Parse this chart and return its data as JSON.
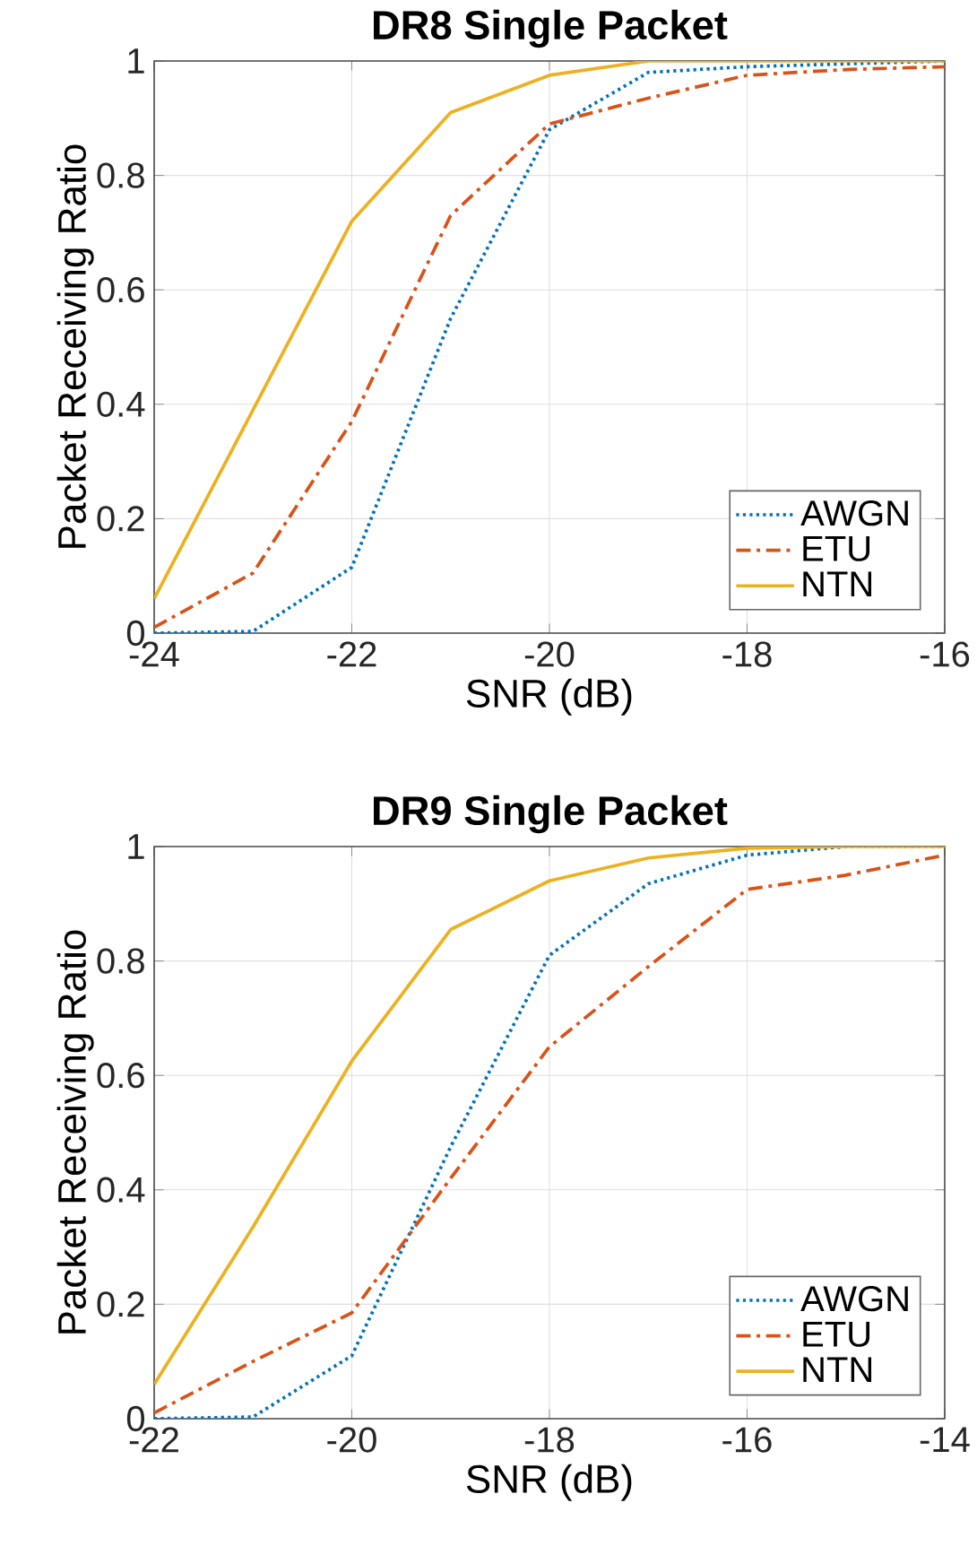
{
  "chart_data": [
    {
      "type": "line",
      "title": "DR8 Single Packet",
      "xlabel": "SNR (dB)",
      "ylabel": "Packet Receiving Ratio",
      "x": [
        -24,
        -23,
        -22,
        -21,
        -20,
        -19,
        -18,
        -17,
        -16
      ],
      "series": [
        {
          "name": "AWGN",
          "color": "#0072bd",
          "line_style": "dotted",
          "values": [
            0,
            0.003,
            0.115,
            0.55,
            0.88,
            0.98,
            0.99,
            0.995,
            1
          ]
        },
        {
          "name": "ETU",
          "color": "#d95319",
          "line_style": "dashdot",
          "values": [
            0.01,
            0.105,
            0.37,
            0.73,
            0.89,
            0.935,
            0.975,
            0.985,
            0.99
          ]
        },
        {
          "name": "NTN",
          "color": "#edb120",
          "line_style": "solid",
          "values": [
            0.06,
            0.39,
            0.72,
            0.91,
            0.975,
            1,
            1,
            1,
            1
          ]
        }
      ],
      "xlim": [
        -24,
        -16
      ],
      "ylim": [
        0,
        1
      ],
      "xticks": [
        -24,
        -22,
        -20,
        -18,
        -16
      ],
      "yticks": [
        0,
        0.2,
        0.4,
        0.6,
        0.8,
        1
      ],
      "grid": true,
      "legend": "bottom right",
      "marker": "none"
    },
    {
      "type": "line",
      "title": "DR9 Single Packet",
      "xlabel": "SNR (dB)",
      "ylabel": "Packet Receiving Ratio",
      "x": [
        -22,
        -21,
        -20,
        -19,
        -18,
        -17,
        -16,
        -15,
        -14
      ],
      "series": [
        {
          "name": "AWGN",
          "color": "#0072bd",
          "line_style": "dotted",
          "values": [
            0,
            0.003,
            0.11,
            0.475,
            0.81,
            0.935,
            0.985,
            1,
            1
          ]
        },
        {
          "name": "ETU",
          "color": "#d95319",
          "line_style": "dashdot",
          "values": [
            0.01,
            0.1,
            0.185,
            0.42,
            0.65,
            0.79,
            0.925,
            0.95,
            0.985
          ]
        },
        {
          "name": "NTN",
          "color": "#edb120",
          "line_style": "solid",
          "values": [
            0.06,
            0.335,
            0.625,
            0.855,
            0.94,
            0.98,
            0.997,
            1,
            1
          ]
        }
      ],
      "xlim": [
        -22,
        -14
      ],
      "ylim": [
        0,
        1
      ],
      "xticks": [
        -22,
        -20,
        -18,
        -16,
        -14
      ],
      "yticks": [
        0,
        0.2,
        0.4,
        0.6,
        0.8,
        1
      ],
      "grid": true,
      "legend": "bottom right",
      "marker": "none"
    }
  ]
}
